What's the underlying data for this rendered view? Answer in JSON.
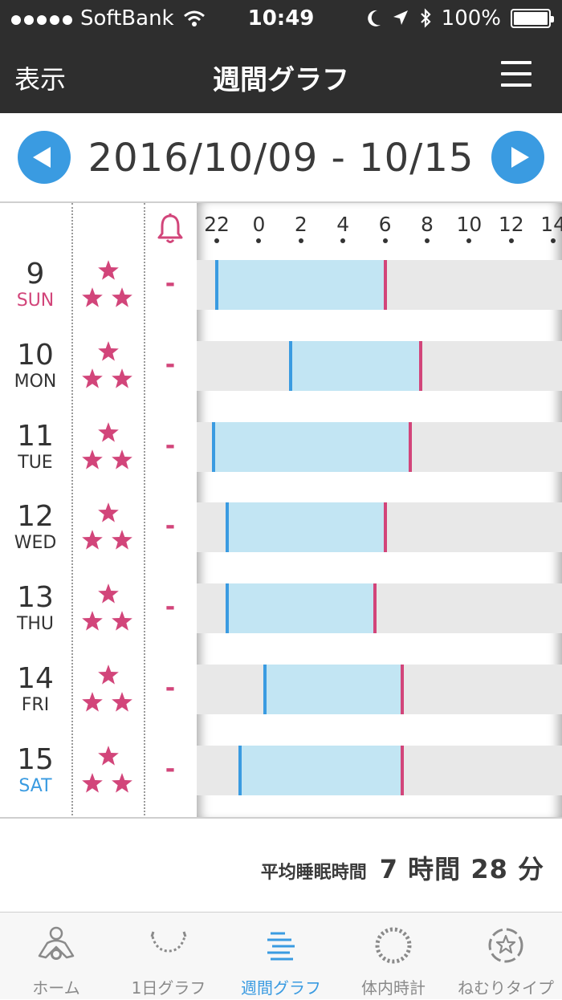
{
  "status_bar": {
    "carrier": "SoftBank",
    "time": "10:49",
    "battery_text": "100%",
    "battery_level": 1.0
  },
  "nav": {
    "left_label": "表示",
    "title": "週間グラフ"
  },
  "week": {
    "range": "2016/10/09 - 10/15"
  },
  "axis": {
    "ticks": [
      "22",
      "0",
      "2",
      "4",
      "6",
      "8",
      "10",
      "12",
      "14"
    ]
  },
  "days": [
    {
      "date": "9",
      "dow": "SUN",
      "type": "sun",
      "rating": 3,
      "alarm": "-",
      "sleep_start": 22.0,
      "sleep_end": 6.0
    },
    {
      "date": "10",
      "dow": "MON",
      "type": "",
      "rating": 3,
      "alarm": "-",
      "sleep_start": 1.5,
      "sleep_end": 7.7
    },
    {
      "date": "11",
      "dow": "TUE",
      "type": "",
      "rating": 3,
      "alarm": "-",
      "sleep_start": 21.85,
      "sleep_end": 7.2
    },
    {
      "date": "12",
      "dow": "WED",
      "type": "",
      "rating": 3,
      "alarm": "-",
      "sleep_start": 22.5,
      "sleep_end": 6.0
    },
    {
      "date": "13",
      "dow": "THU",
      "type": "",
      "rating": 3,
      "alarm": "-",
      "sleep_start": 22.5,
      "sleep_end": 5.5
    },
    {
      "date": "14",
      "dow": "FRI",
      "type": "",
      "rating": 3,
      "alarm": "-",
      "sleep_start": 0.3,
      "sleep_end": 6.8
    },
    {
      "date": "15",
      "dow": "SAT",
      "type": "sat",
      "rating": 3,
      "alarm": "-",
      "sleep_start": 23.1,
      "sleep_end": 6.8
    }
  ],
  "average": {
    "label": "平均睡眠時間",
    "value": "7 時間 28 分"
  },
  "tabs": [
    {
      "label": "ホーム",
      "icon": "home-icon",
      "active": false
    },
    {
      "label": "1日グラフ",
      "icon": "daily-graph-icon",
      "active": false
    },
    {
      "label": "週間グラフ",
      "icon": "weekly-graph-icon",
      "active": true
    },
    {
      "label": "体内時計",
      "icon": "body-clock-icon",
      "active": false
    },
    {
      "label": "ねむりタイプ",
      "icon": "sleep-type-icon",
      "active": false
    }
  ],
  "colors": {
    "accent_blue": "#3a9be1",
    "accent_pink": "#d2457a",
    "sleep_fill": "#c2e5f3",
    "nav_bg": "#2e2e2e"
  }
}
